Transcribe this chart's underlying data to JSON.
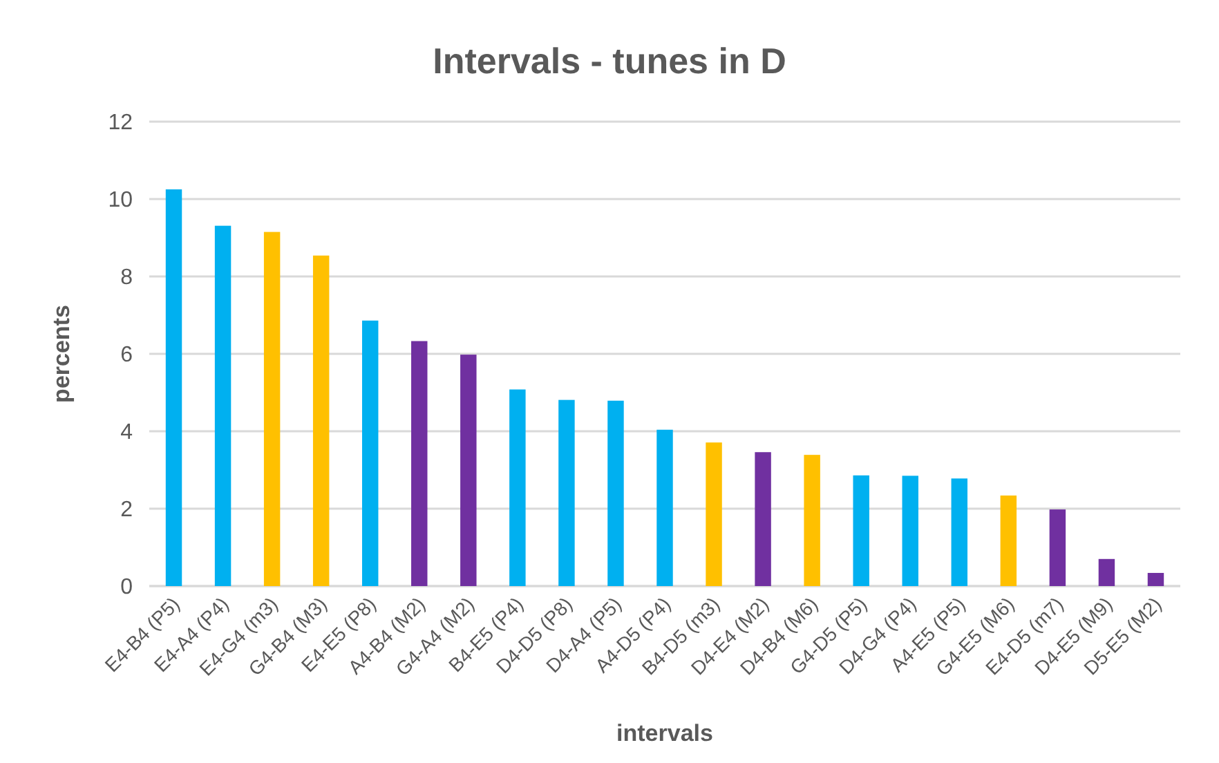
{
  "chart_data": {
    "type": "bar",
    "title": "Intervals - tunes in D",
    "xlabel": "intervals",
    "ylabel": "percents",
    "categories": [
      "E4-B4 (P5)",
      "E4-A4 (P4)",
      "E4-G4 (m3)",
      "G4-B4 (M3)",
      "E4-E5 (P8)",
      "A4-B4 (M2)",
      "G4-A4 (M2)",
      "B4-E5 (P4)",
      "D4-D5 (P8)",
      "D4-A4 (P5)",
      "A4-D5 (P4)",
      "B4-D5 (m3)",
      "D4-E4 (M2)",
      "D4-B4 (M6)",
      "G4-D5 (P5)",
      "D4-G4 (P4)",
      "A4-E5 (P5)",
      "G4-E5 (M6)",
      "E4-D5 (m7)",
      "D4-E5 (M9)",
      "D5-E5 (M2)"
    ],
    "values": [
      10.25,
      9.31,
      9.15,
      8.54,
      6.86,
      6.33,
      5.98,
      5.08,
      4.81,
      4.79,
      4.04,
      3.71,
      3.46,
      3.39,
      2.86,
      2.85,
      2.78,
      2.34,
      1.98,
      0.7,
      0.34
    ],
    "colors": [
      "#00b0f0",
      "#00b0f0",
      "#ffc000",
      "#ffc000",
      "#00b0f0",
      "#7030a0",
      "#7030a0",
      "#00b0f0",
      "#00b0f0",
      "#00b0f0",
      "#00b0f0",
      "#ffc000",
      "#7030a0",
      "#ffc000",
      "#00b0f0",
      "#00b0f0",
      "#00b0f0",
      "#ffc000",
      "#7030a0",
      "#7030a0",
      "#7030a0"
    ],
    "ylim": [
      0,
      12
    ],
    "yticks": [
      0,
      2,
      4,
      6,
      8,
      10,
      12
    ],
    "grid": "y"
  }
}
